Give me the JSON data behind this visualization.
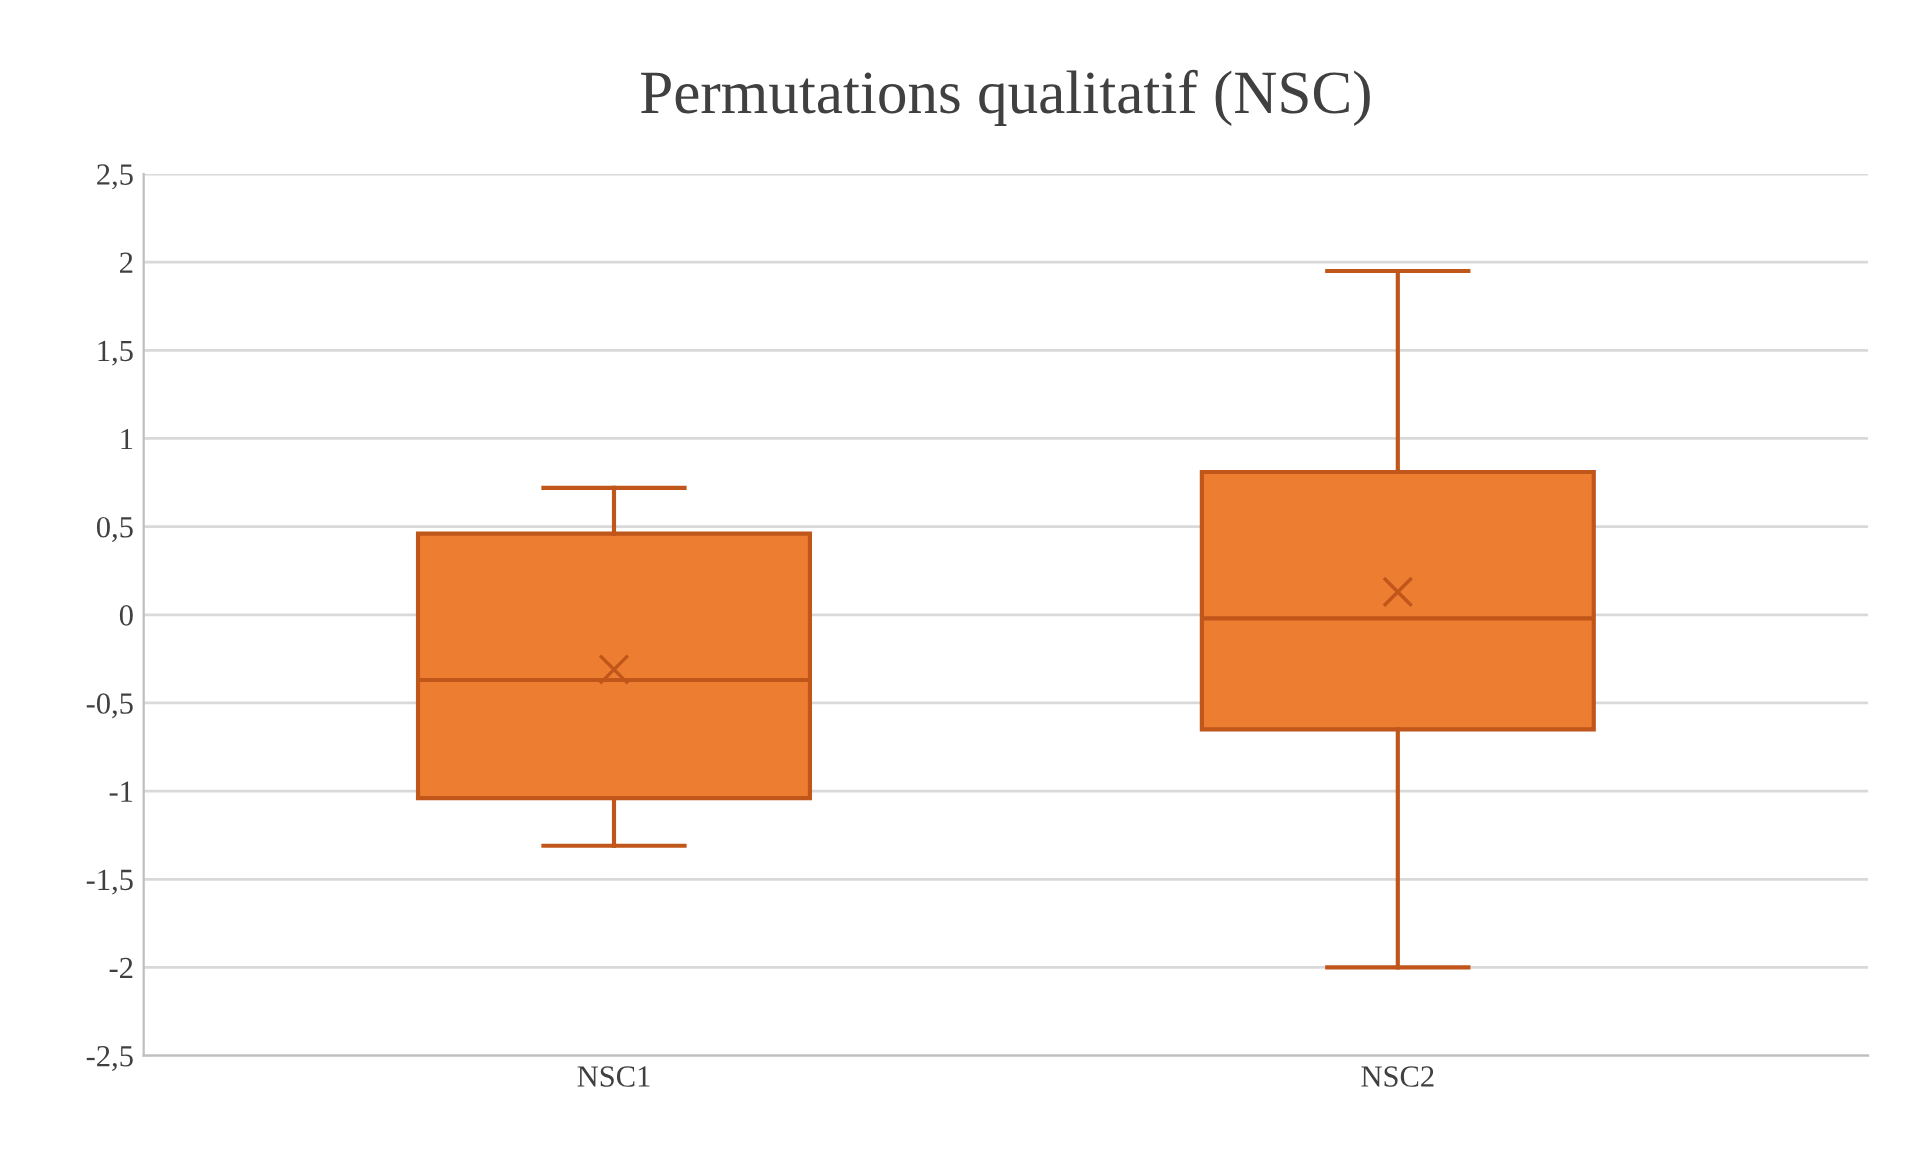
{
  "chart_data": {
    "type": "box",
    "title": "Permutations qualitatif (NSC)",
    "categories": [
      "NSC1",
      "NSC2"
    ],
    "boxes": [
      {
        "low": -1.31,
        "q1": -1.04,
        "median": -0.37,
        "q3": 0.46,
        "high": 0.72,
        "mean": -0.31
      },
      {
        "low": -2.0,
        "q1": -0.65,
        "median": -0.02,
        "q3": 0.81,
        "high": 1.95,
        "mean": 0.13
      }
    ],
    "color": "#ed7d31",
    "ylim": [
      -2.5,
      2.5
    ],
    "yticks": [
      {
        "value": -2.5,
        "label": "-2,5"
      },
      {
        "value": -2,
        "label": "-2"
      },
      {
        "value": -1.5,
        "label": "-1,5"
      },
      {
        "value": -1,
        "label": "-1"
      },
      {
        "value": -0.5,
        "label": "-0,5"
      },
      0,
      {
        "value": 0.5,
        "label": "0,5"
      },
      1,
      {
        "value": 1.5,
        "label": "1,5"
      },
      2,
      {
        "value": 2.5,
        "label": "2,5"
      }
    ],
    "grid": "y",
    "marker": "cross"
  }
}
